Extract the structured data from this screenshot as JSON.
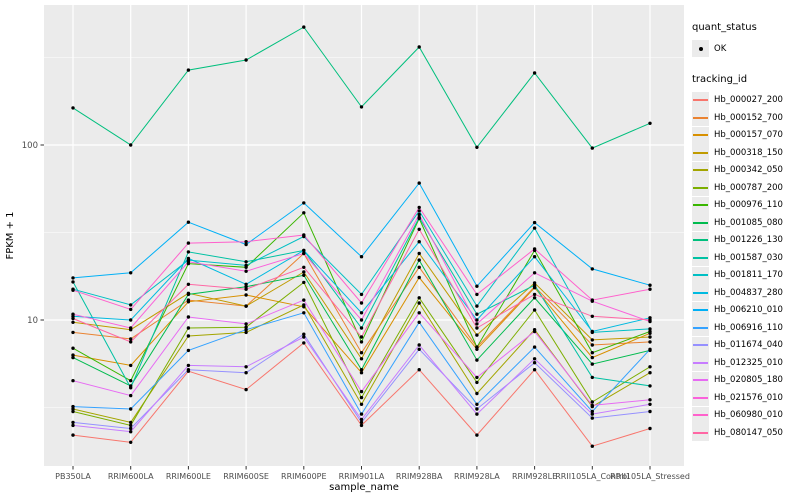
{
  "legend": {
    "quant_status_title": "quant_status",
    "quant_status_ok_label": "OK",
    "tracking_id_title": "tracking_id"
  },
  "style_colors": {
    "panel_bg": "#EBEBEB",
    "grid": "#FFFFFF",
    "tick_text": "#4D4D4D",
    "axis_title_text": "#000000",
    "point_marker": "#000000",
    "legend_key_bg": "#EBEBEB"
  },
  "chart_data": {
    "type": "line",
    "title": "",
    "xlabel": "sample_name",
    "ylabel": "FPKM + 1",
    "yscale": "log10",
    "ylim": [
      1.47,
      630
    ],
    "yticks_major": [
      100,
      10
    ],
    "ytick_labels": [
      "100",
      "10"
    ],
    "yticks_minor": [
      3.162,
      31.62,
      316.2
    ],
    "grid": "on",
    "legend_position": "right",
    "point_marker_meaning": "quant_status = OK (black point on every value)",
    "categories": [
      "PB350LA",
      "RRIM600LA",
      "RRIM600LE",
      "RRIM600SE",
      "RRIM600PE",
      "RRIM901LA",
      "RRIM928BA",
      "RRIM928LA",
      "RRIM928LE",
      "RRII105LA_Control",
      "RRII105LA_Stressed"
    ],
    "series": [
      {
        "name": "Hb_000027_200",
        "color": "#F8766D",
        "values": [
          2.2,
          2.0,
          5.1,
          4.0,
          7.4,
          2.5,
          5.2,
          2.2,
          5.2,
          1.9,
          2.4
        ]
      },
      {
        "name": "Hb_000152_700",
        "color": "#EA8331",
        "values": [
          8.5,
          7.8,
          13.0,
          12.0,
          24.0,
          6.5,
          20.0,
          7.0,
          15.5,
          7.2,
          7.5
        ]
      },
      {
        "name": "Hb_000157_070",
        "color": "#D89000",
        "values": [
          6.3,
          5.5,
          12.7,
          13.9,
          11.9,
          5.0,
          17.5,
          6.8,
          15.3,
          6.1,
          8.4
        ]
      },
      {
        "name": "Hb_000318_150",
        "color": "#C09B00",
        "values": [
          9.7,
          8.8,
          14.2,
          12.0,
          18.8,
          6.0,
          24.0,
          8.2,
          16.3,
          7.7,
          8.0
        ]
      },
      {
        "name": "Hb_000342_050",
        "color": "#A3A500",
        "values": [
          3.1,
          2.6,
          8.1,
          8.5,
          12.2,
          3.3,
          12.5,
          3.8,
          8.8,
          3.2,
          5.0
        ]
      },
      {
        "name": "Hb_000787_200",
        "color": "#7CAE00",
        "values": [
          3.0,
          2.5,
          9.0,
          9.1,
          16.4,
          3.6,
          13.4,
          4.4,
          11.4,
          3.4,
          5.4
        ]
      },
      {
        "name": "Hb_000976_110",
        "color": "#39B600",
        "values": [
          6.9,
          4.5,
          21.0,
          20.0,
          41.0,
          7.5,
          38.0,
          7.0,
          25.0,
          6.5,
          8.6
        ]
      },
      {
        "name": "Hb_001085_080",
        "color": "#00BB4E",
        "values": [
          6.1,
          4.2,
          14.0,
          15.5,
          18.0,
          5.2,
          22.0,
          5.9,
          13.4,
          5.6,
          6.7
        ]
      },
      {
        "name": "Hb_001226_130",
        "color": "#00BF7D",
        "values": [
          163,
          100,
          268,
          306,
          472,
          165,
          363,
          97,
          258,
          96,
          133
        ]
      },
      {
        "name": "Hb_001587_030",
        "color": "#00C1A3",
        "values": [
          16.5,
          4.1,
          24.5,
          21.5,
          25.0,
          9.0,
          38.5,
          10.8,
          15.8,
          4.7,
          4.2
        ]
      },
      {
        "name": "Hb_001811_170",
        "color": "#00BFC4",
        "values": [
          15.0,
          12.2,
          22.0,
          20.5,
          30.0,
          14.0,
          42.0,
          12.0,
          33.5,
          8.5,
          8.9
        ]
      },
      {
        "name": "Hb_004837_280",
        "color": "#00BAE0",
        "values": [
          10.5,
          10.0,
          22.5,
          16.0,
          25.0,
          11.0,
          28.0,
          10.0,
          23.0,
          8.6,
          10.3
        ]
      },
      {
        "name": "Hb_006210_010",
        "color": "#00B0F6",
        "values": [
          17.4,
          18.6,
          36.2,
          27.0,
          46.7,
          23.0,
          60.6,
          15.6,
          36.0,
          19.6,
          15.8
        ]
      },
      {
        "name": "Hb_006916_110",
        "color": "#35A2FF",
        "values": [
          3.2,
          3.1,
          6.7,
          8.8,
          11.0,
          2.9,
          9.7,
          3.3,
          7.0,
          3.0,
          6.8
        ]
      },
      {
        "name": "Hb_011674_040",
        "color": "#9590FF",
        "values": [
          2.6,
          2.4,
          5.2,
          5.0,
          8.3,
          2.6,
          6.8,
          3.1,
          5.7,
          2.75,
          3.0
        ]
      },
      {
        "name": "Hb_012325_010",
        "color": "#C77CFF",
        "values": [
          2.5,
          2.3,
          5.5,
          5.4,
          8.0,
          2.7,
          7.2,
          2.9,
          6.0,
          2.9,
          3.3
        ]
      },
      {
        "name": "Hb_020805_180",
        "color": "#E76BF3",
        "values": [
          4.5,
          3.7,
          10.4,
          9.5,
          13.0,
          3.9,
          11.0,
          4.7,
          8.6,
          3.25,
          3.5
        ]
      },
      {
        "name": "Hb_021576_010",
        "color": "#FA62DB",
        "values": [
          10.8,
          9.0,
          21.5,
          19.0,
          24.0,
          10.0,
          40.0,
          9.5,
          18.6,
          12.8,
          9.8
        ]
      },
      {
        "name": "Hb_060980_010",
        "color": "#FF61CC",
        "values": [
          14.8,
          11.5,
          27.5,
          28.0,
          30.6,
          12.5,
          44.0,
          14.0,
          25.5,
          13.0,
          15.0
        ]
      },
      {
        "name": "Hb_080147_050",
        "color": "#FF67A4",
        "values": [
          10.2,
          7.5,
          16.0,
          15.0,
          20.0,
          8.0,
          33.0,
          9.0,
          14.0,
          10.5,
          10.0
        ]
      }
    ]
  }
}
